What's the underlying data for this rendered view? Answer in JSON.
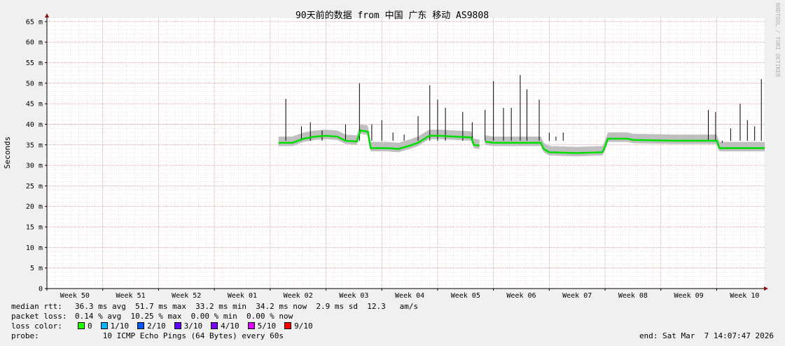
{
  "chart_data": {
    "type": "line",
    "title": "90天前的数据 from  中国 广东 移动 AS9808",
    "ylabel": "Seconds",
    "ylim": [
      0,
      0.066
    ],
    "y_ticks": [
      {
        "v": 0,
        "label": "0"
      },
      {
        "v": 0.005,
        "label": "5 m"
      },
      {
        "v": 0.01,
        "label": "10 m"
      },
      {
        "v": 0.015,
        "label": "15 m"
      },
      {
        "v": 0.02,
        "label": "20 m"
      },
      {
        "v": 0.025,
        "label": "25 m"
      },
      {
        "v": 0.03,
        "label": "30 m"
      },
      {
        "v": 0.035,
        "label": "35 m"
      },
      {
        "v": 0.04,
        "label": "40 m"
      },
      {
        "v": 0.045,
        "label": "45 m"
      },
      {
        "v": 0.05,
        "label": "50 m"
      },
      {
        "v": 0.055,
        "label": "55 m"
      },
      {
        "v": 0.06,
        "label": "60 m"
      },
      {
        "v": 0.065,
        "label": "65 m"
      }
    ],
    "xlim": [
      0,
      12.86
    ],
    "x_ticks": [
      {
        "v": 0.5,
        "label": "Week 50"
      },
      {
        "v": 1.5,
        "label": "Week 51"
      },
      {
        "v": 2.5,
        "label": "Week 52"
      },
      {
        "v": 3.5,
        "label": "Week 01"
      },
      {
        "v": 4.5,
        "label": "Week 02"
      },
      {
        "v": 5.5,
        "label": "Week 03"
      },
      {
        "v": 6.5,
        "label": "Week 04"
      },
      {
        "v": 7.5,
        "label": "Week 05"
      },
      {
        "v": 8.5,
        "label": "Week 06"
      },
      {
        "v": 9.5,
        "label": "Week 07"
      },
      {
        "v": 10.5,
        "label": "Week 08"
      },
      {
        "v": 11.5,
        "label": "Week 09"
      },
      {
        "v": 12.5,
        "label": "Week 10"
      }
    ],
    "median_segments": [
      [
        [
          4.15,
          0.0355
        ],
        [
          4.4,
          0.0355
        ],
        [
          4.6,
          0.0365
        ],
        [
          4.8,
          0.037
        ],
        [
          5.0,
          0.0372
        ],
        [
          5.2,
          0.037
        ],
        [
          5.35,
          0.036
        ],
        [
          5.55,
          0.0358
        ],
        [
          5.62,
          0.0385
        ],
        [
          5.75,
          0.0382
        ],
        [
          5.8,
          0.0342
        ],
        [
          6.1,
          0.0342
        ],
        [
          6.3,
          0.034
        ],
        [
          6.5,
          0.0348
        ],
        [
          6.65,
          0.0355
        ],
        [
          6.85,
          0.0372
        ],
        [
          7.05,
          0.0372
        ],
        [
          7.3,
          0.037
        ],
        [
          7.6,
          0.0368
        ],
        [
          7.65,
          0.035
        ],
        [
          7.75,
          0.0348
        ]
      ],
      [
        [
          7.85,
          0.0358
        ],
        [
          8.0,
          0.0355
        ],
        [
          8.4,
          0.0355
        ],
        [
          8.85,
          0.0355
        ],
        [
          8.9,
          0.034
        ],
        [
          9.0,
          0.0332
        ],
        [
          9.5,
          0.033
        ],
        [
          9.95,
          0.0332
        ],
        [
          10.0,
          0.0345
        ],
        [
          10.05,
          0.0365
        ],
        [
          10.4,
          0.0365
        ],
        [
          10.5,
          0.0362
        ],
        [
          11.2,
          0.036
        ],
        [
          11.8,
          0.036
        ],
        [
          12.0,
          0.036
        ],
        [
          12.05,
          0.0342
        ],
        [
          12.86,
          0.0342
        ]
      ]
    ],
    "spikes": [
      {
        "x": 4.28,
        "y": 0.0462
      },
      {
        "x": 4.56,
        "y": 0.0395
      },
      {
        "x": 4.72,
        "y": 0.0405
      },
      {
        "x": 4.93,
        "y": 0.0385
      },
      {
        "x": 5.35,
        "y": 0.04
      },
      {
        "x": 5.6,
        "y": 0.05
      },
      {
        "x": 5.82,
        "y": 0.04
      },
      {
        "x": 6.0,
        "y": 0.041
      },
      {
        "x": 6.2,
        "y": 0.038
      },
      {
        "x": 6.4,
        "y": 0.0375
      },
      {
        "x": 6.65,
        "y": 0.042
      },
      {
        "x": 6.86,
        "y": 0.0495
      },
      {
        "x": 7.0,
        "y": 0.046
      },
      {
        "x": 7.14,
        "y": 0.044
      },
      {
        "x": 7.45,
        "y": 0.043
      },
      {
        "x": 7.62,
        "y": 0.0405
      },
      {
        "x": 7.85,
        "y": 0.0435
      },
      {
        "x": 8.0,
        "y": 0.0505
      },
      {
        "x": 8.18,
        "y": 0.044
      },
      {
        "x": 8.32,
        "y": 0.044
      },
      {
        "x": 8.48,
        "y": 0.052
      },
      {
        "x": 8.6,
        "y": 0.0485
      },
      {
        "x": 8.82,
        "y": 0.046
      },
      {
        "x": 9.0,
        "y": 0.038
      },
      {
        "x": 9.12,
        "y": 0.037
      },
      {
        "x": 9.25,
        "y": 0.038
      },
      {
        "x": 11.85,
        "y": 0.0435
      },
      {
        "x": 11.98,
        "y": 0.043
      },
      {
        "x": 12.1,
        "y": 0.0355
      },
      {
        "x": 12.25,
        "y": 0.039
      },
      {
        "x": 12.42,
        "y": 0.045
      },
      {
        "x": 12.55,
        "y": 0.041
      },
      {
        "x": 12.68,
        "y": 0.0395
      },
      {
        "x": 12.8,
        "y": 0.051
      }
    ],
    "colors": {
      "background": "#f0f0f0",
      "plot_background": "#ffffff",
      "grid_minor": "#e5c8c8",
      "grid_major": "#d49e9e",
      "axis": "#000000",
      "arrow": "#8b1010",
      "smoke": "#b8b8b8",
      "median_line": "#00dd00",
      "spike_line": "#000000"
    }
  },
  "watermark": "RRDTOOL / TOBI OETIKER",
  "stats": {
    "median_rtt_label": "median rtt:",
    "median_rtt_value": "36.3 ms avg  51.7 ms max  33.2 ms min  34.2 ms now  2.9 ms sd  12.3   am/s",
    "packet_loss_label": "packet loss:",
    "packet_loss_value": "0.14 % avg  10.25 % max  0.00 % min  0.00 % now",
    "loss_color_label": "loss color:",
    "loss_colors": [
      {
        "label": "0",
        "color": "#26ff00"
      },
      {
        "label": "1/10",
        "color": "#00b8ff"
      },
      {
        "label": "2/10",
        "color": "#0059ff"
      },
      {
        "label": "3/10",
        "color": "#5e00ff"
      },
      {
        "label": "4/10",
        "color": "#7e00ff"
      },
      {
        "label": "5/10",
        "color": "#dd00ff"
      },
      {
        "label": "9/10",
        "color": "#ff0000"
      }
    ],
    "probe_label": "probe:",
    "probe_value": "      10 ICMP Echo Pings (64 Bytes) every 60s",
    "end": "end: Sat Mar  7 14:07:47 2026"
  }
}
